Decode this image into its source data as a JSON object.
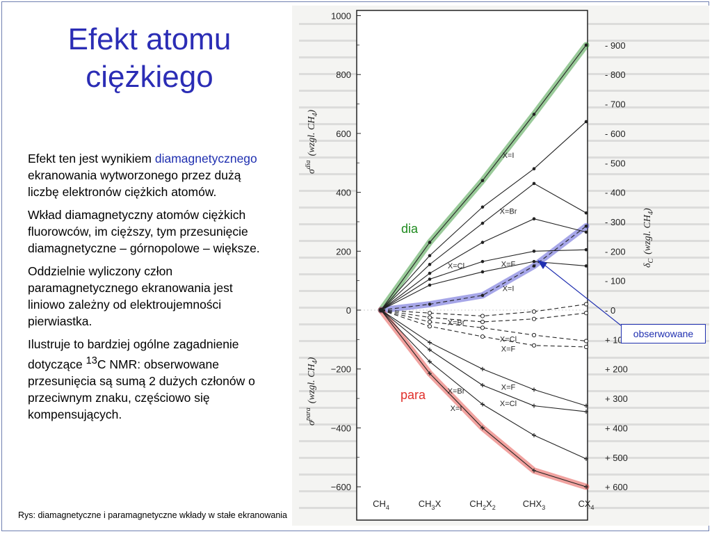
{
  "slide": {
    "title_lines": [
      "Efekt atomu",
      "ciężkiego"
    ],
    "paragraphs": {
      "p1_a": "Efekt ten jest wynikiem ",
      "p1_accent": "diamagnetycznego",
      "p1_b": " ekranowania wytworzonego przez dużą liczbę elektronów ciężkich atomów.",
      "p2": "Wkład diamagnetyczny atomów ciężkich fluorowców, im cięższy, tym przesunięcie diamagnetyczne – górnopolowe – większe.",
      "p3": "Oddzielnie wyliczony człon paramagnetycznego ekranowania jest liniowo zależny od elektroujemności pierwiastka.",
      "p4_a": "Ilustruje to bardziej ogólne zagadnienie dotyczące ",
      "p4_sup": "13",
      "p4_b": "C NMR: obserwowane przesunięcia są sumą 2 dużych członów o przeciwnym znaku, częściowo się kompensujących."
    },
    "caption": "Rys: diamagnetyczne i paramagnetyczne wkłady w stałe ekranowania",
    "annotations": {
      "observed": "obserwowane",
      "dia": "dia",
      "para": "para"
    },
    "colors": {
      "title": "#2b2db5",
      "dia": "#1d8a1d",
      "para": "#e0302b",
      "observed": "#1f2fb0"
    }
  },
  "chart_data": {
    "type": "line",
    "categories": [
      "CH4",
      "CH3X",
      "CH2X2",
      "CHX3",
      "CX4"
    ],
    "category_labels": [
      {
        "main": "CH",
        "sub": "4"
      },
      {
        "main": "CH",
        "sub": "3",
        "tail": "X"
      },
      {
        "main": "CH",
        "sub": "2",
        "tail": "X",
        "sub2": "2"
      },
      {
        "main": "CHX",
        "sub": "3"
      },
      {
        "main": "CX",
        "sub": "4"
      }
    ],
    "left_axis": {
      "label": "σ^dia (wzgl. CH4) / σ^para (wzgl. CH4)",
      "ylim": [
        -650,
        1000
      ],
      "ticks": [
        1000,
        800,
        600,
        400,
        200,
        0,
        -200,
        -400,
        -600
      ],
      "tick_labels": [
        "1000",
        "800",
        "600",
        "400",
        "200",
        "0",
        "−200",
        "−400",
        "−600"
      ],
      "label_dia": "σ",
      "label_dia_sup": "dia",
      "label_dia_rest": "(wzgl. CH",
      "label_para_sup": "para",
      "label_sub": "4",
      "label_close": ")"
    },
    "right_axis": {
      "label": "δC (wzgl. CH4)",
      "label_main": "δ",
      "label_sub": "C",
      "label_rest": "(wzgl. CH",
      "label_sub2": "4",
      "label_close": ")",
      "ticks": [
        900,
        800,
        700,
        600,
        500,
        400,
        300,
        200,
        100,
        0,
        -100,
        -200,
        -300,
        -400,
        -500,
        -600
      ],
      "tick_labels": [
        "- 900",
        "- 800",
        "- 700",
        "- 600",
        "- 500",
        "- 400",
        "- 300",
        "- 200",
        "- 100",
        "- 0",
        "+ 100",
        "+ 200",
        "+ 300",
        "+ 400",
        "+ 500",
        "+ 600"
      ]
    },
    "series": [
      {
        "name": "X=I",
        "group": "dia",
        "style": "solid",
        "marker": "dot",
        "values": [
          0,
          230,
          440,
          665,
          900
        ],
        "label_at": 3
      },
      {
        "name": "",
        "group": "dia",
        "style": "solid",
        "marker": "dot",
        "values": [
          0,
          185,
          350,
          480,
          640
        ]
      },
      {
        "name": "X=Br",
        "group": "dia",
        "style": "solid",
        "marker": "dot",
        "values": [
          0,
          155,
          295,
          430,
          330
        ],
        "label_at": 3
      },
      {
        "name": "X=Cl",
        "group": "dia",
        "style": "solid",
        "marker": "dot",
        "values": [
          0,
          125,
          230,
          310,
          265
        ],
        "label_at": 2
      },
      {
        "name": "X=F",
        "group": "dia",
        "style": "solid",
        "marker": "dot",
        "values": [
          0,
          105,
          165,
          200,
          205
        ],
        "label_at": 3
      },
      {
        "name": "",
        "group": "dia",
        "style": "solid",
        "marker": "dot",
        "values": [
          0,
          85,
          130,
          165,
          150
        ]
      },
      {
        "name": "X=I",
        "group": "obs",
        "style": "dashed",
        "marker": "dot",
        "values": [
          0,
          20,
          50,
          150,
          285
        ],
        "label_at": 3
      },
      {
        "name": "X=Br",
        "group": "obs",
        "style": "dashed",
        "marker": "circle",
        "values": [
          0,
          -10,
          -20,
          -5,
          20
        ],
        "label_at": 2
      },
      {
        "name": "",
        "group": "obs",
        "style": "dashed",
        "marker": "circle",
        "values": [
          0,
          -25,
          -40,
          -30,
          -10
        ]
      },
      {
        "name": "X=Cl",
        "group": "obs",
        "style": "dashed",
        "marker": "circle",
        "values": [
          0,
          -40,
          -60,
          -85,
          -105
        ],
        "label_at": 3
      },
      {
        "name": "X=F",
        "group": "obs",
        "style": "dashed",
        "marker": "circle",
        "values": [
          0,
          -55,
          -90,
          -120,
          -125
        ],
        "label_at": 3
      },
      {
        "name": "X=F",
        "group": "para",
        "style": "solid",
        "marker": "cross",
        "values": [
          0,
          -110,
          -200,
          -270,
          -325
        ],
        "label_at": 3
      },
      {
        "name": "X=Cl",
        "group": "para",
        "style": "solid",
        "marker": "cross",
        "values": [
          0,
          -135,
          -255,
          -325,
          -345
        ],
        "label_at": 3
      },
      {
        "name": "X=Br",
        "group": "para",
        "style": "solid",
        "marker": "cross",
        "values": [
          0,
          -175,
          -320,
          -425,
          -505
        ],
        "label_at": 2
      },
      {
        "name": "X=I",
        "group": "para",
        "style": "solid",
        "marker": "cross",
        "values": [
          0,
          -215,
          -400,
          -545,
          -600
        ],
        "label_at": 2
      }
    ],
    "highlights": [
      {
        "group": "dia",
        "color": "#1d8a1d",
        "values": [
          0,
          230,
          440,
          665,
          900
        ]
      },
      {
        "group": "obs",
        "color": "#3a3acc",
        "values": [
          0,
          20,
          50,
          150,
          285
        ]
      },
      {
        "group": "para",
        "color": "#e0302b",
        "values": [
          0,
          -215,
          -400,
          -545,
          -600
        ]
      }
    ]
  }
}
